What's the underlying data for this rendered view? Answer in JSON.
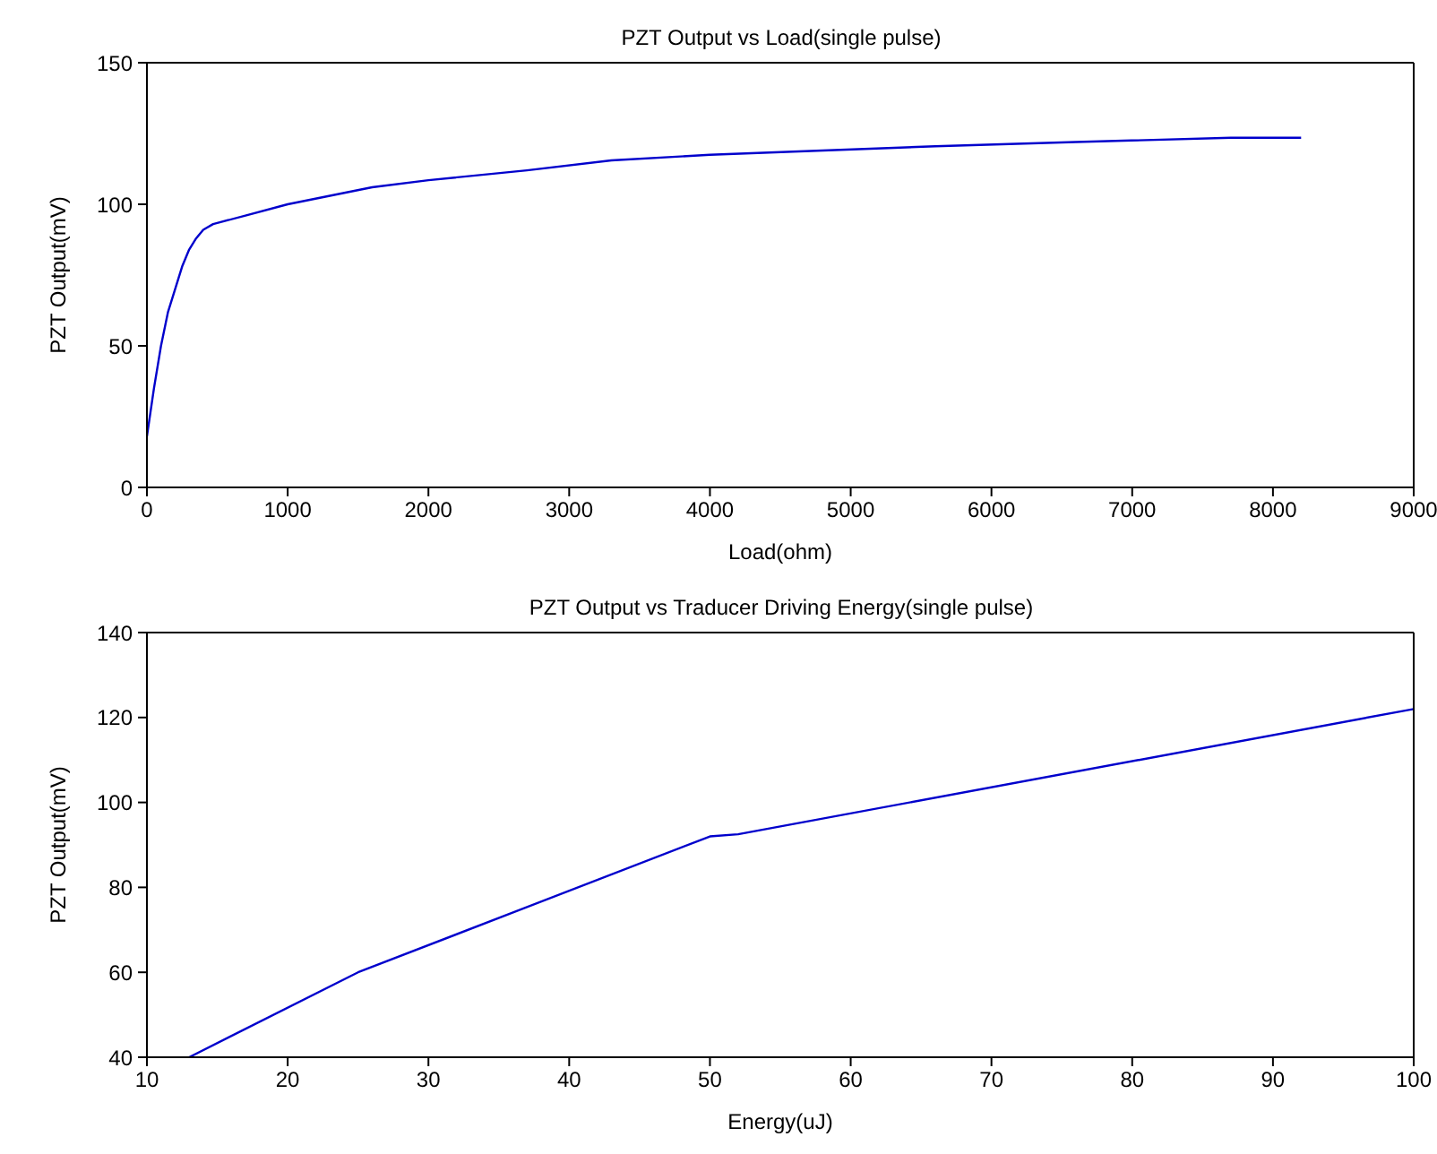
{
  "chart_data": [
    {
      "type": "line",
      "title": "PZT Output vs Load(single pulse)",
      "xlabel": "Load(ohm)",
      "ylabel": "PZT Output(mV)",
      "xlim": [
        0,
        9000
      ],
      "xticks": [
        0,
        1000,
        2000,
        3000,
        4000,
        5000,
        6000,
        7000,
        8000,
        9000
      ],
      "ylim": [
        0,
        150
      ],
      "yticks": [
        0,
        50,
        100,
        150
      ],
      "grid": false,
      "legend": false,
      "marker": "none",
      "line_style": "solid",
      "series": [
        {
          "color": "#0000cc",
          "x": [
            0,
            50,
            100,
            150,
            200,
            250,
            300,
            350,
            400,
            470,
            700,
            1000,
            1300,
            1600,
            2000,
            2700,
            3300,
            4000,
            4800,
            5600,
            6600,
            7700,
            8200
          ],
          "values": [
            18,
            35,
            50,
            62,
            70,
            78,
            84,
            88,
            91,
            93,
            96,
            100,
            103,
            106,
            108.5,
            112,
            115.5,
            117.5,
            119,
            120.5,
            122,
            123.5,
            123.5
          ]
        }
      ]
    },
    {
      "type": "line",
      "title": "PZT Output vs Traducer Driving Energy(single pulse)",
      "xlabel": "Energy(uJ)",
      "ylabel": "PZT Output(mV)",
      "xlim": [
        10,
        100
      ],
      "xticks": [
        10,
        20,
        30,
        40,
        50,
        60,
        70,
        80,
        90,
        100
      ],
      "ylim": [
        40,
        140
      ],
      "yticks": [
        40,
        60,
        80,
        100,
        120,
        140
      ],
      "grid": false,
      "legend": false,
      "marker": "none",
      "line_style": "solid",
      "series": [
        {
          "color": "#0000cc",
          "x": [
            13,
            25,
            50,
            52,
            100
          ],
          "values": [
            40,
            60,
            92,
            92.5,
            122
          ]
        }
      ]
    }
  ]
}
